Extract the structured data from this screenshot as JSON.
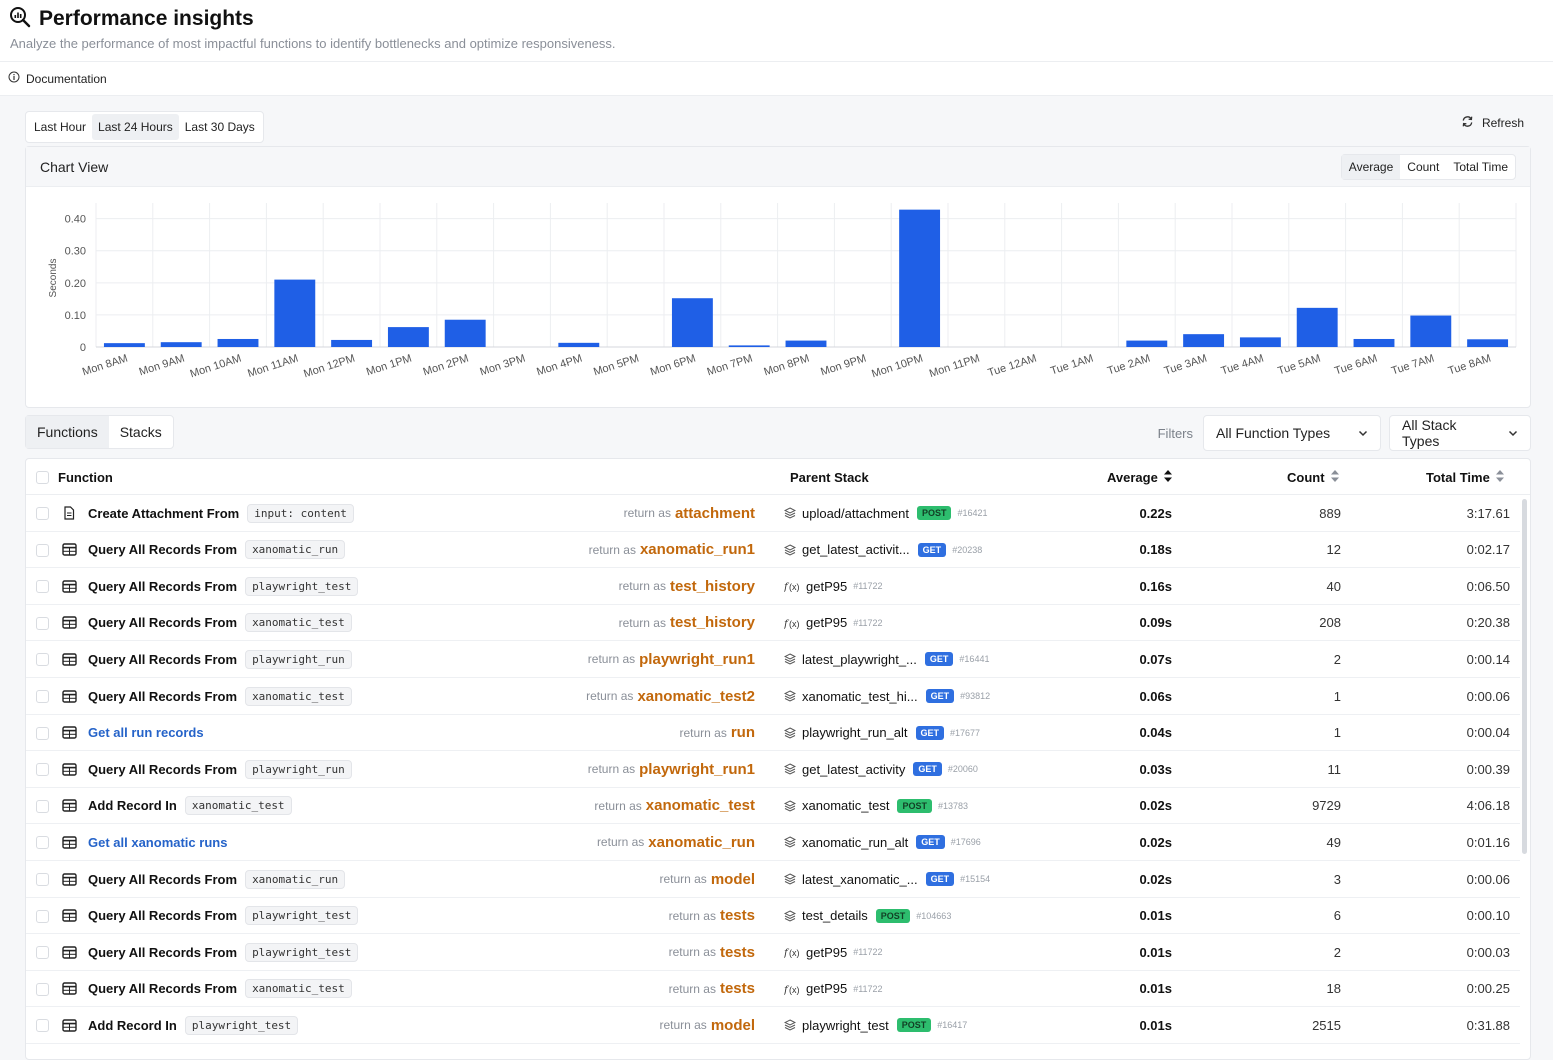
{
  "header": {
    "title": "Performance insights",
    "subtitle": "Analyze the performance of most impactful functions to identify bottlenecks and optimize responsiveness.",
    "documentation_label": "Documentation"
  },
  "toolbar": {
    "ranges": [
      "Last Hour",
      "Last 24 Hours",
      "Last 30 Days"
    ],
    "active_range": "Last 24 Hours",
    "refresh_label": "Refresh"
  },
  "chart": {
    "view_title": "Chart View",
    "metrics": [
      "Average",
      "Count",
      "Total Time"
    ],
    "active_metric": "Average"
  },
  "chart_data": {
    "type": "bar",
    "ylabel": "Seconds",
    "ylim": [
      0,
      0.43
    ],
    "yticks": [
      0,
      0.1,
      0.2,
      0.3,
      0.4
    ],
    "ytick_labels": [
      "0",
      "0.10",
      "0.20",
      "0.30",
      "0.40"
    ],
    "grid": true,
    "bar_color": "#1f5fe6",
    "categories": [
      "Mon 8AM",
      "Mon 9AM",
      "Mon 10AM",
      "Mon 11AM",
      "Mon 12PM",
      "Mon 1PM",
      "Mon 2PM",
      "Mon 3PM",
      "Mon 4PM",
      "Mon 5PM",
      "Mon 6PM",
      "Mon 7PM",
      "Mon 8PM",
      "Mon 9PM",
      "Mon 10PM",
      "Mon 11PM",
      "Tue 12AM",
      "Tue 1AM",
      "Tue 2AM",
      "Tue 3AM",
      "Tue 4AM",
      "Tue 5AM",
      "Tue 6AM",
      "Tue 7AM",
      "Tue 8AM"
    ],
    "values": [
      0.012,
      0.015,
      0.025,
      0.21,
      0.022,
      0.062,
      0.085,
      0,
      0.013,
      0,
      0.152,
      0.005,
      0.02,
      0,
      0.428,
      0,
      0,
      0,
      0.02,
      0.04,
      0.03,
      0.122,
      0.025,
      0.098,
      0.024
    ]
  },
  "tabs": {
    "items": [
      "Functions",
      "Stacks"
    ],
    "active": "Functions",
    "filters_label": "Filters",
    "function_type": "All Function Types",
    "stack_type": "All Stack Types"
  },
  "table": {
    "columns": {
      "function": "Function",
      "parent_stack": "Parent Stack",
      "average": "Average",
      "count": "Count",
      "total_time": "Total Time"
    },
    "rows": [
      {
        "icon": "document-icon",
        "name": "Create Attachment From",
        "link": false,
        "chip": "input: content",
        "return_prefix": "return as",
        "return_var": "attachment",
        "stack_icon": "stack-icon",
        "stack": "upload/attachment",
        "method": "POST",
        "stack_id": "#16421",
        "average": "0.22s",
        "count": "889",
        "total": "3:17.61"
      },
      {
        "icon": "table-icon",
        "name": "Query All Records From",
        "link": false,
        "chip": "xanomatic_run",
        "return_prefix": "return as",
        "return_var": "xanomatic_run1",
        "stack_icon": "stack-icon",
        "stack": "get_latest_activit...",
        "method": "GET",
        "stack_id": "#20238",
        "average": "0.18s",
        "count": "12",
        "total": "0:02.17"
      },
      {
        "icon": "table-icon",
        "name": "Query All Records From",
        "link": false,
        "chip": "playwright_test",
        "return_prefix": "return as",
        "return_var": "test_history",
        "stack_icon": "function-icon",
        "stack": "getP95",
        "method": "",
        "stack_id": "#11722",
        "average": "0.16s",
        "count": "40",
        "total": "0:06.50"
      },
      {
        "icon": "table-icon",
        "name": "Query All Records From",
        "link": false,
        "chip": "xanomatic_test",
        "return_prefix": "return as",
        "return_var": "test_history",
        "stack_icon": "function-icon",
        "stack": "getP95",
        "method": "",
        "stack_id": "#11722",
        "average": "0.09s",
        "count": "208",
        "total": "0:20.38"
      },
      {
        "icon": "table-icon",
        "name": "Query All Records From",
        "link": false,
        "chip": "playwright_run",
        "return_prefix": "return as",
        "return_var": "playwright_run1",
        "stack_icon": "stack-icon",
        "stack": "latest_playwright_...",
        "method": "GET",
        "stack_id": "#16441",
        "average": "0.07s",
        "count": "2",
        "total": "0:00.14"
      },
      {
        "icon": "table-icon",
        "name": "Query All Records From",
        "link": false,
        "chip": "xanomatic_test",
        "return_prefix": "return as",
        "return_var": "xanomatic_test2",
        "stack_icon": "stack-icon",
        "stack": "xanomatic_test_hi...",
        "method": "GET",
        "stack_id": "#93812",
        "average": "0.06s",
        "count": "1",
        "total": "0:00.06"
      },
      {
        "icon": "table-icon",
        "name": "Get all run records",
        "link": true,
        "chip": "",
        "return_prefix": "return as",
        "return_var": "run",
        "stack_icon": "stack-icon",
        "stack": "playwright_run_alt",
        "method": "GET",
        "stack_id": "#17677",
        "average": "0.04s",
        "count": "1",
        "total": "0:00.04"
      },
      {
        "icon": "table-icon",
        "name": "Query All Records From",
        "link": false,
        "chip": "playwright_run",
        "return_prefix": "return as",
        "return_var": "playwright_run1",
        "stack_icon": "stack-icon",
        "stack": "get_latest_activity",
        "method": "GET",
        "stack_id": "#20060",
        "average": "0.03s",
        "count": "11",
        "total": "0:00.39"
      },
      {
        "icon": "table-icon",
        "name": "Add Record In",
        "link": false,
        "chip": "xanomatic_test",
        "return_prefix": "return as",
        "return_var": "xanomatic_test",
        "stack_icon": "stack-icon",
        "stack": "xanomatic_test",
        "method": "POST",
        "stack_id": "#13783",
        "average": "0.02s",
        "count": "9729",
        "total": "4:06.18"
      },
      {
        "icon": "table-icon",
        "name": "Get all xanomatic runs",
        "link": true,
        "chip": "",
        "return_prefix": "return as",
        "return_var": "xanomatic_run",
        "stack_icon": "stack-icon",
        "stack": "xanomatic_run_alt",
        "method": "GET",
        "stack_id": "#17696",
        "average": "0.02s",
        "count": "49",
        "total": "0:01.16"
      },
      {
        "icon": "table-icon",
        "name": "Query All Records From",
        "link": false,
        "chip": "xanomatic_run",
        "return_prefix": "return as",
        "return_var": "model",
        "stack_icon": "stack-icon",
        "stack": "latest_xanomatic_...",
        "method": "GET",
        "stack_id": "#15154",
        "average": "0.02s",
        "count": "3",
        "total": "0:00.06"
      },
      {
        "icon": "table-icon",
        "name": "Query All Records From",
        "link": false,
        "chip": "playwright_test",
        "return_prefix": "return as",
        "return_var": "tests",
        "stack_icon": "stack-icon",
        "stack": "test_details",
        "method": "POST",
        "stack_id": "#104663",
        "average": "0.01s",
        "count": "6",
        "total": "0:00.10"
      },
      {
        "icon": "table-icon",
        "name": "Query All Records From",
        "link": false,
        "chip": "playwright_test",
        "return_prefix": "return as",
        "return_var": "tests",
        "stack_icon": "function-icon",
        "stack": "getP95",
        "method": "",
        "stack_id": "#11722",
        "average": "0.01s",
        "count": "2",
        "total": "0:00.03"
      },
      {
        "icon": "table-icon",
        "name": "Query All Records From",
        "link": false,
        "chip": "xanomatic_test",
        "return_prefix": "return as",
        "return_var": "tests",
        "stack_icon": "function-icon",
        "stack": "getP95",
        "method": "",
        "stack_id": "#11722",
        "average": "0.01s",
        "count": "18",
        "total": "0:00.25"
      },
      {
        "icon": "table-icon",
        "name": "Add Record In",
        "link": false,
        "chip": "playwright_test",
        "return_prefix": "return as",
        "return_var": "model",
        "stack_icon": "stack-icon",
        "stack": "playwright_test",
        "method": "POST",
        "stack_id": "#16417",
        "average": "0.01s",
        "count": "2515",
        "total": "0:31.88"
      }
    ]
  }
}
